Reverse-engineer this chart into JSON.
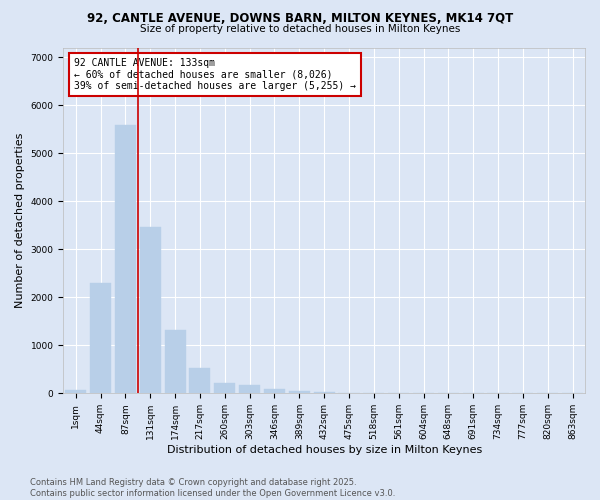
{
  "title_line1": "92, CANTLE AVENUE, DOWNS BARN, MILTON KEYNES, MK14 7QT",
  "title_line2": "Size of property relative to detached houses in Milton Keynes",
  "xlabel": "Distribution of detached houses by size in Milton Keynes",
  "ylabel": "Number of detached properties",
  "categories": [
    "1sqm",
    "44sqm",
    "87sqm",
    "131sqm",
    "174sqm",
    "217sqm",
    "260sqm",
    "303sqm",
    "346sqm",
    "389sqm",
    "432sqm",
    "475sqm",
    "518sqm",
    "561sqm",
    "604sqm",
    "648sqm",
    "691sqm",
    "734sqm",
    "777sqm",
    "820sqm",
    "863sqm"
  ],
  "values": [
    75,
    2300,
    5580,
    3460,
    1320,
    520,
    210,
    175,
    100,
    55,
    30,
    0,
    0,
    0,
    0,
    0,
    0,
    0,
    0,
    0,
    0
  ],
  "bar_color": "#b8cfe8",
  "bar_edge_color": "#b8cfe8",
  "background_color": "#dce6f5",
  "grid_color": "#ffffff",
  "vline_color": "#cc0000",
  "annotation_title": "92 CANTLE AVENUE: 133sqm",
  "annotation_line2": "← 60% of detached houses are smaller (8,026)",
  "annotation_line3": "39% of semi-detached houses are larger (5,255) →",
  "annotation_box_color": "#cc0000",
  "ylim": [
    0,
    7200
  ],
  "yticks": [
    0,
    1000,
    2000,
    3000,
    4000,
    5000,
    6000,
    7000
  ],
  "footer_line1": "Contains HM Land Registry data © Crown copyright and database right 2025.",
  "footer_line2": "Contains public sector information licensed under the Open Government Licence v3.0.",
  "title_fontsize": 8.5,
  "subtitle_fontsize": 7.5,
  "tick_fontsize": 6.5,
  "ylabel_fontsize": 8,
  "xlabel_fontsize": 8,
  "annotation_fontsize": 7,
  "footer_fontsize": 6
}
